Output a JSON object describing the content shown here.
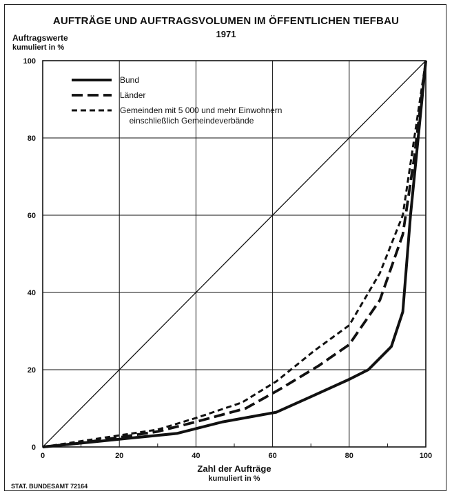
{
  "chart_data": {
    "type": "line",
    "title": "AUFTRÄGE UND AUFTRAGSVOLUMEN IM ÖFFENTLICHEN TIEFBAU",
    "subtitle": "1971",
    "ylabel": "Auftragswerte",
    "ylabel_unit": "kumuliert in %",
    "xlabel": "Zahl der Aufträge",
    "xlabel_unit": "kumuliert in %",
    "xlim": [
      0,
      100
    ],
    "ylim": [
      0,
      100
    ],
    "x_ticks": [
      "0",
      "20",
      "40",
      "60",
      "80",
      "100"
    ],
    "y_ticks": [
      "0",
      "20",
      "40",
      "60",
      "80",
      "100"
    ],
    "grid": true,
    "legend_position": "top-left",
    "reference_line": {
      "x": [
        0,
        100
      ],
      "y": [
        0,
        100
      ]
    },
    "series": [
      {
        "name": "Bund",
        "style": "solid",
        "x": [
          0,
          10,
          20,
          35,
          47,
          61,
          70,
          80,
          85,
          91,
          94,
          96,
          98,
          100
        ],
        "y": [
          0,
          1,
          2,
          3.5,
          6.5,
          9,
          13,
          17.5,
          20,
          26,
          35,
          60,
          80,
          100
        ]
      },
      {
        "name": "Länder",
        "style": "long-dash",
        "x": [
          0,
          10,
          20,
          30,
          40,
          53,
          62,
          72,
          80,
          88,
          94,
          97,
          100
        ],
        "y": [
          0,
          1,
          2.5,
          4,
          6.5,
          10,
          15,
          21,
          26.5,
          38,
          55,
          75,
          100
        ]
      },
      {
        "name": "Gemeinden mit 5 000 und mehr Einwohnern einschließlich Gemeindeverbände",
        "style": "short-dash",
        "x": [
          0,
          10,
          20,
          30,
          40,
          52,
          61,
          71,
          80,
          88,
          94,
          97,
          100
        ],
        "y": [
          0,
          1.5,
          3,
          4.5,
          7.5,
          11.5,
          17,
          25,
          31.5,
          45,
          60,
          80,
          100
        ]
      }
    ],
    "legend_labels": [
      "Bund",
      "Länder",
      "Gemeinden mit 5 000 und mehr Einwohnern",
      "einschließlich Gemeindeverbände"
    ]
  },
  "source_note": "STAT. BUNDESAMT 72164",
  "colors": {
    "ink": "#111111",
    "background": "#ffffff"
  }
}
